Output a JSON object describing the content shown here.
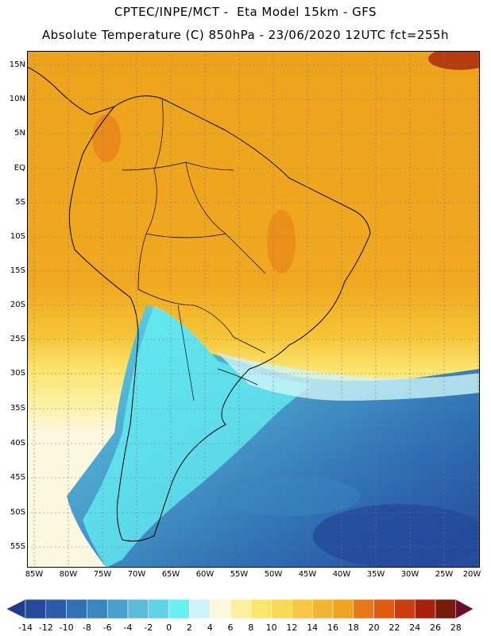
{
  "header": {
    "line1": "CPTEC/INPE/MCT -  Eta Model 15km - GFS",
    "line2": "Absolute Temperature (C) 850hPa - 23/06/2020 12UTC fct=255h"
  },
  "map": {
    "lat_labels": [
      "15N",
      "10N",
      "5N",
      "EQ",
      "5S",
      "10S",
      "15S",
      "20S",
      "25S",
      "30S",
      "35S",
      "40S",
      "45S",
      "50S",
      "55S"
    ],
    "lon_labels": [
      "85W",
      "80W",
      "75W",
      "70W",
      "65W",
      "60W",
      "55W",
      "50W",
      "45W",
      "40W",
      "35W",
      "30W",
      "25W",
      "20W"
    ]
  },
  "colorbar": {
    "ticks": [
      "-14",
      "-12",
      "-10",
      "-8",
      "-6",
      "-4",
      "-2",
      "0",
      "2",
      "4",
      "6",
      "8",
      "10",
      "12",
      "14",
      "16",
      "18",
      "20",
      "22",
      "24",
      "26",
      "28"
    ],
    "colors": [
      "#1e3c8c",
      "#24489a",
      "#2a5aa8",
      "#3070b4",
      "#3a86c0",
      "#4aa0cc",
      "#5abcd8",
      "#5cd6e6",
      "#66f2f4",
      "#cef4f8",
      "#fcf8e0",
      "#fcf0a0",
      "#fce670",
      "#fad858",
      "#f8c844",
      "#f4b630",
      "#f0a420",
      "#e87818",
      "#e05a10",
      "#cc3c0c",
      "#a8200a",
      "#781a0c",
      "#6a0c2c"
    ]
  }
}
